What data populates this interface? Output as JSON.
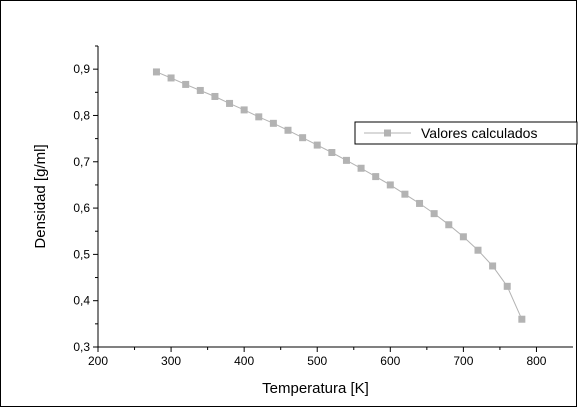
{
  "chart_data": {
    "type": "line",
    "xlabel": "Temperatura [K]",
    "ylabel": "Densidad [g/ml]",
    "xlim": [
      200,
      850
    ],
    "ylim": [
      0.3,
      0.95
    ],
    "x_ticks": [
      200,
      300,
      400,
      500,
      600,
      700,
      800
    ],
    "x_tick_labels": [
      "200",
      "300",
      "400",
      "500",
      "600",
      "700",
      "800"
    ],
    "y_ticks": [
      0.3,
      0.4,
      0.5,
      0.6,
      0.7,
      0.8,
      0.9
    ],
    "y_tick_labels": [
      "0,3",
      "0,4",
      "0,5",
      "0,6",
      "0,7",
      "0,8",
      "0,9"
    ],
    "grid": false,
    "legend_position": "right",
    "series": [
      {
        "name": "Valores calculados",
        "color": "#b3b3b3",
        "marker": "square",
        "x": [
          280,
          300,
          320,
          340,
          360,
          380,
          400,
          420,
          440,
          460,
          480,
          500,
          520,
          540,
          560,
          580,
          600,
          620,
          640,
          660,
          680,
          700,
          720,
          740,
          760,
          780
        ],
        "y": [
          0.894,
          0.881,
          0.867,
          0.854,
          0.841,
          0.826,
          0.812,
          0.797,
          0.783,
          0.768,
          0.752,
          0.736,
          0.72,
          0.703,
          0.686,
          0.668,
          0.65,
          0.63,
          0.61,
          0.588,
          0.564,
          0.538,
          0.509,
          0.475,
          0.431,
          0.36
        ]
      }
    ]
  }
}
